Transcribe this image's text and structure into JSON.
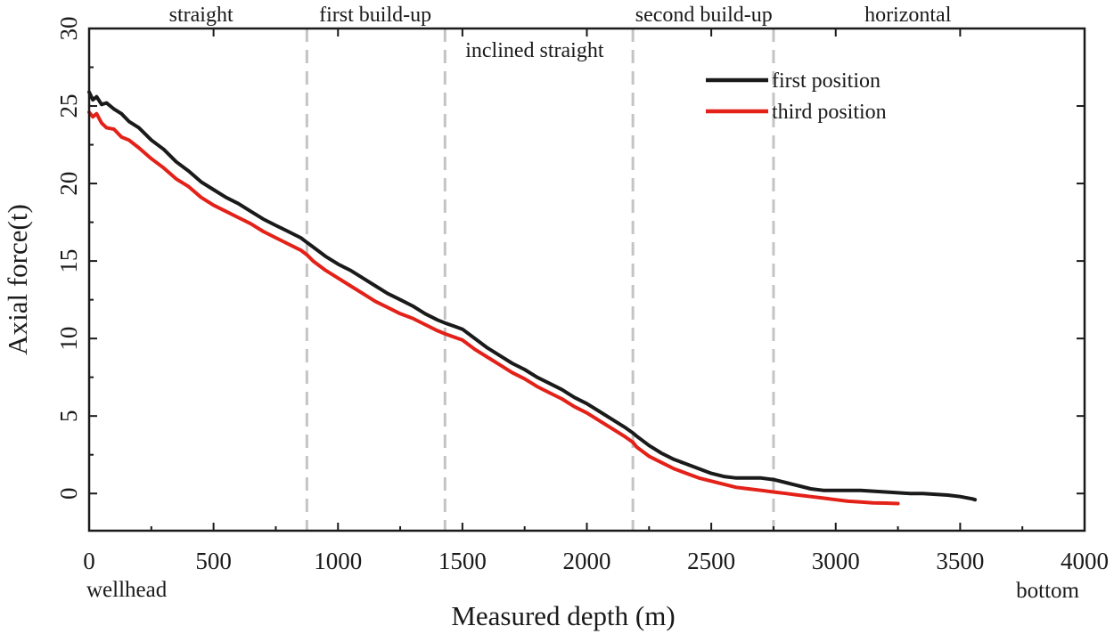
{
  "chart_data": {
    "type": "line",
    "title": "",
    "xlabel": "Measured depth (m)",
    "ylabel": "Axial force(t)",
    "xlim": [
      0,
      4000
    ],
    "ylim": [
      -2.4,
      30
    ],
    "xticks": [
      0,
      500,
      1000,
      1500,
      2000,
      2500,
      3000,
      3500,
      4000
    ],
    "xtick_labels": [
      "0",
      "500",
      "1000",
      "1500",
      "2000",
      "2500",
      "3000",
      "3500",
      "4000"
    ],
    "yticks": [
      0,
      5,
      10,
      15,
      20,
      25,
      30
    ],
    "ytick_labels": [
      "0",
      "5",
      "10",
      "15",
      "20",
      "25",
      "30"
    ],
    "grid": false,
    "legend_position": "top-right",
    "x_start_label": "wellhead",
    "x_end_label": "bottom",
    "section_boundaries": [
      875,
      1430,
      2185,
      2750
    ],
    "sections": [
      {
        "name": "straight",
        "x": 450,
        "row": "upper"
      },
      {
        "name": "first build-up",
        "x": 1150,
        "row": "upper"
      },
      {
        "name": "inclined straight",
        "x": 1790,
        "row": "lower"
      },
      {
        "name": "second build-up",
        "x": 2470,
        "row": "upper"
      },
      {
        "name": "horizontal",
        "x": 3290,
        "row": "upper"
      }
    ],
    "series": [
      {
        "name": "first position",
        "color": "#1a1a1a",
        "x": [
          0,
          15,
          30,
          50,
          70,
          100,
          130,
          160,
          200,
          250,
          300,
          350,
          400,
          450,
          500,
          550,
          600,
          650,
          700,
          750,
          800,
          850,
          875,
          900,
          950,
          1000,
          1050,
          1100,
          1150,
          1200,
          1250,
          1300,
          1350,
          1400,
          1430,
          1500,
          1550,
          1600,
          1650,
          1700,
          1750,
          1800,
          1850,
          1900,
          1950,
          2000,
          2050,
          2100,
          2150,
          2185,
          2200,
          2250,
          2300,
          2350,
          2400,
          2450,
          2500,
          2550,
          2600,
          2650,
          2700,
          2750,
          2800,
          2850,
          2900,
          2950,
          3000,
          3050,
          3100,
          3150,
          3200,
          3250,
          3300,
          3350,
          3400,
          3450,
          3500,
          3550,
          3560
        ],
        "values": [
          25.9,
          25.4,
          25.6,
          25.1,
          25.2,
          24.8,
          24.5,
          24.0,
          23.6,
          22.8,
          22.2,
          21.4,
          20.8,
          20.1,
          19.6,
          19.1,
          18.7,
          18.2,
          17.7,
          17.3,
          16.9,
          16.5,
          16.2,
          15.9,
          15.3,
          14.8,
          14.4,
          13.9,
          13.4,
          12.9,
          12.5,
          12.1,
          11.6,
          11.2,
          11.0,
          10.6,
          10.0,
          9.4,
          8.9,
          8.4,
          8.0,
          7.5,
          7.1,
          6.7,
          6.2,
          5.8,
          5.3,
          4.8,
          4.3,
          3.9,
          3.7,
          3.1,
          2.6,
          2.2,
          1.9,
          1.6,
          1.3,
          1.1,
          1.0,
          1.0,
          1.0,
          0.9,
          0.7,
          0.5,
          0.3,
          0.2,
          0.2,
          0.2,
          0.2,
          0.15,
          0.1,
          0.05,
          0.0,
          0.0,
          -0.05,
          -0.1,
          -0.2,
          -0.35,
          -0.4
        ]
      },
      {
        "name": "third position",
        "color": "#e32119",
        "x": [
          0,
          15,
          30,
          50,
          70,
          100,
          130,
          160,
          200,
          250,
          300,
          350,
          400,
          450,
          500,
          550,
          600,
          650,
          700,
          750,
          800,
          850,
          875,
          900,
          950,
          1000,
          1050,
          1100,
          1150,
          1200,
          1250,
          1300,
          1350,
          1400,
          1430,
          1500,
          1550,
          1600,
          1650,
          1700,
          1750,
          1800,
          1850,
          1900,
          1950,
          2000,
          2050,
          2100,
          2150,
          2185,
          2200,
          2250,
          2300,
          2350,
          2400,
          2450,
          2500,
          2550,
          2600,
          2650,
          2700,
          2750,
          2800,
          2850,
          2900,
          2950,
          3000,
          3050,
          3100,
          3150,
          3200,
          3250
        ],
        "values": [
          24.6,
          24.3,
          24.5,
          23.9,
          23.6,
          23.5,
          23.0,
          22.8,
          22.3,
          21.6,
          21.0,
          20.3,
          19.8,
          19.1,
          18.6,
          18.2,
          17.8,
          17.4,
          16.9,
          16.5,
          16.1,
          15.7,
          15.4,
          15.0,
          14.4,
          13.9,
          13.4,
          12.9,
          12.4,
          12.0,
          11.6,
          11.3,
          10.9,
          10.5,
          10.3,
          9.9,
          9.3,
          8.8,
          8.3,
          7.8,
          7.4,
          6.9,
          6.5,
          6.1,
          5.6,
          5.2,
          4.7,
          4.2,
          3.7,
          3.3,
          3.0,
          2.4,
          2.0,
          1.6,
          1.3,
          1.0,
          0.8,
          0.6,
          0.4,
          0.3,
          0.2,
          0.1,
          0.0,
          -0.1,
          -0.2,
          -0.3,
          -0.4,
          -0.5,
          -0.55,
          -0.6,
          -0.62,
          -0.65
        ]
      }
    ]
  }
}
